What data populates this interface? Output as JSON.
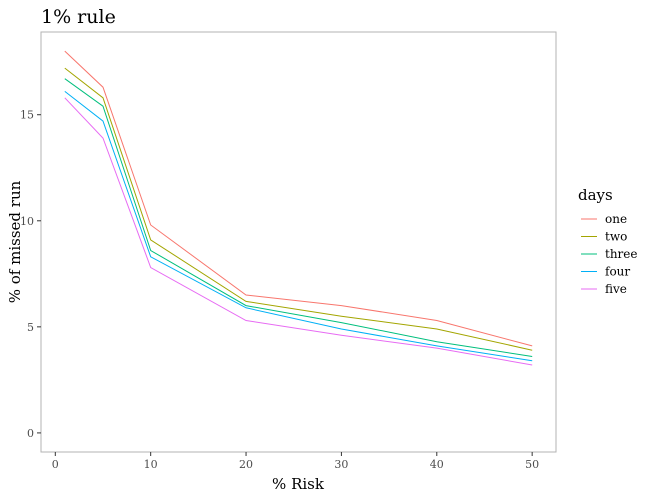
{
  "chart_data": {
    "type": "line",
    "title": "1% rule",
    "xlabel": "% Risk",
    "ylabel": "% of missed run",
    "x": [
      1,
      5,
      10,
      20,
      30,
      40,
      50
    ],
    "xticks": [
      0,
      10,
      20,
      30,
      40,
      50
    ],
    "yticks": [
      0,
      5,
      10,
      15
    ],
    "xlim": [
      -1.5,
      52.5
    ],
    "ylim": [
      -0.9,
      18.9
    ],
    "grid": false,
    "legend": {
      "title": "days",
      "position": "right"
    },
    "series": [
      {
        "name": "one",
        "color": "#F8766D",
        "values": [
          18.0,
          16.3,
          9.8,
          6.5,
          6.0,
          5.3,
          4.1
        ]
      },
      {
        "name": "two",
        "color": "#A3A500",
        "values": [
          17.2,
          15.8,
          9.1,
          6.2,
          5.5,
          4.9,
          3.9
        ]
      },
      {
        "name": "three",
        "color": "#00BF7D",
        "values": [
          16.7,
          15.4,
          8.6,
          6.0,
          5.2,
          4.3,
          3.6
        ]
      },
      {
        "name": "four",
        "color": "#00B0F6",
        "values": [
          16.1,
          14.7,
          8.3,
          5.9,
          4.9,
          4.1,
          3.4
        ]
      },
      {
        "name": "five",
        "color": "#E76BF3",
        "values": [
          15.8,
          13.9,
          7.8,
          5.3,
          4.6,
          4.0,
          3.2
        ]
      }
    ]
  }
}
